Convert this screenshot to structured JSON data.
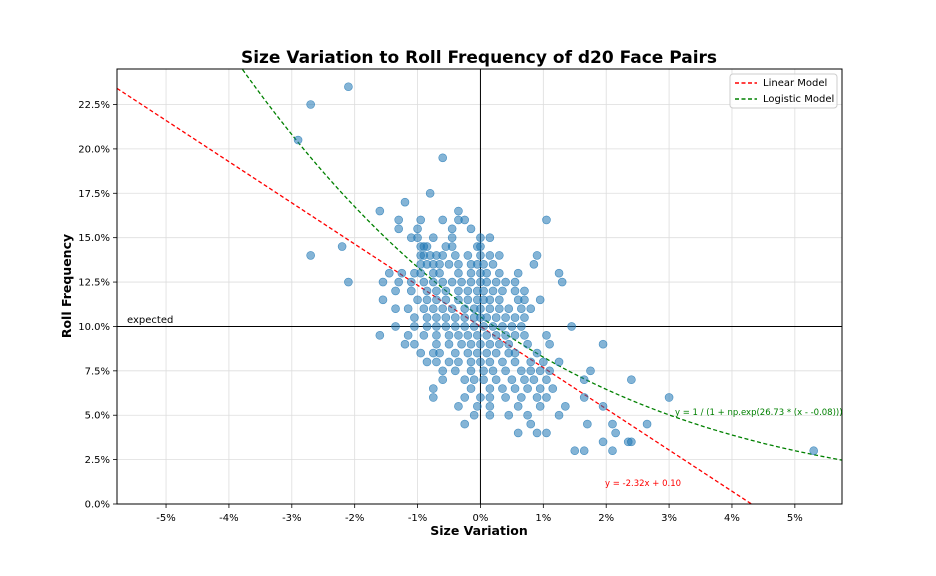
{
  "chart_data": {
    "type": "scatter",
    "title": "Size Variation to Roll Frequency of d20 Face Pairs",
    "xlabel": "Size Variation",
    "ylabel": "Roll Frequency",
    "xlim": [
      -0.0578,
      0.0575
    ],
    "ylim": [
      0,
      0.245
    ],
    "x_ticks": [
      -0.05,
      -0.04,
      -0.03,
      -0.02,
      -0.01,
      0,
      0.01,
      0.02,
      0.03,
      0.04,
      0.05
    ],
    "x_tick_labels": [
      "-5%",
      "-4%",
      "-3%",
      "-2%",
      "-1%",
      "0%",
      "1%",
      "2%",
      "3%",
      "4%",
      "5%"
    ],
    "y_ticks": [
      0,
      0.025,
      0.05,
      0.075,
      0.1,
      0.125,
      0.15,
      0.175,
      0.2,
      0.225
    ],
    "y_tick_labels": [
      "0.0%",
      "2.5%",
      "5.0%",
      "7.5%",
      "10.0%",
      "12.5%",
      "15.0%",
      "17.5%",
      "20.0%",
      "22.5%"
    ],
    "grid": true,
    "legend_position": "top-right",
    "reference_lines": {
      "horizontal_y": 0.1,
      "horizontal_label": "expected",
      "vertical_x": 0
    },
    "series": [
      {
        "name": "Linear Model",
        "type": "line",
        "style": "dashed",
        "color": "#ff0000",
        "slope": -2.32,
        "intercept": 0.1,
        "equation_label": "y = -2.32x + 0.10"
      },
      {
        "name": "Logistic Model",
        "type": "line",
        "style": "dashed",
        "color": "#008000",
        "k": 26.73,
        "x0": -0.08,
        "equation_label": "y = 1 / (1 + np.exp(26.73 * (x - -0.08)))"
      }
    ],
    "points_color": "#1f77b4",
    "points": [
      [
        -0.021,
        0.235
      ],
      [
        -0.027,
        0.225
      ],
      [
        -0.029,
        0.205
      ],
      [
        -0.006,
        0.195
      ],
      [
        -0.008,
        0.175
      ],
      [
        -0.016,
        0.165
      ],
      [
        -0.012,
        0.17
      ],
      [
        -0.022,
        0.145
      ],
      [
        -0.027,
        0.14
      ],
      [
        -0.021,
        0.125
      ],
      [
        0.0105,
        0.16
      ],
      [
        -0.0035,
        0.165
      ],
      [
        -0.0035,
        0.16
      ],
      [
        -0.0025,
        0.16
      ],
      [
        -0.0095,
        0.16
      ],
      [
        -0.006,
        0.16
      ],
      [
        -0.013,
        0.16
      ],
      [
        -0.013,
        0.155
      ],
      [
        -0.01,
        0.155
      ],
      [
        -0.0045,
        0.155
      ],
      [
        -0.0015,
        0.155
      ],
      [
        -0.011,
        0.15
      ],
      [
        -0.01,
        0.15
      ],
      [
        -0.0075,
        0.15
      ],
      [
        -0.0045,
        0.15
      ],
      [
        0.0,
        0.15
      ],
      [
        0.0015,
        0.15
      ],
      [
        -0.0095,
        0.145
      ],
      [
        -0.009,
        0.145
      ],
      [
        -0.0085,
        0.145
      ],
      [
        -0.0055,
        0.145
      ],
      [
        -0.0045,
        0.145
      ],
      [
        -0.0005,
        0.145
      ],
      [
        0.0,
        0.145
      ],
      [
        -0.0095,
        0.14
      ],
      [
        -0.009,
        0.14
      ],
      [
        -0.008,
        0.14
      ],
      [
        -0.007,
        0.14
      ],
      [
        -0.006,
        0.14
      ],
      [
        -0.004,
        0.14
      ],
      [
        -0.002,
        0.14
      ],
      [
        0.0,
        0.14
      ],
      [
        0.0015,
        0.14
      ],
      [
        0.003,
        0.14
      ],
      [
        0.009,
        0.14
      ],
      [
        -0.0095,
        0.135
      ],
      [
        -0.0085,
        0.135
      ],
      [
        -0.0075,
        0.135
      ],
      [
        -0.0065,
        0.135
      ],
      [
        -0.005,
        0.135
      ],
      [
        -0.0035,
        0.135
      ],
      [
        -0.0015,
        0.135
      ],
      [
        -0.0005,
        0.135
      ],
      [
        0.0005,
        0.135
      ],
      [
        0.002,
        0.135
      ],
      [
        0.0085,
        0.135
      ],
      [
        -0.0145,
        0.13
      ],
      [
        -0.0125,
        0.13
      ],
      [
        -0.0105,
        0.13
      ],
      [
        -0.0095,
        0.13
      ],
      [
        -0.0075,
        0.13
      ],
      [
        -0.0065,
        0.13
      ],
      [
        -0.0035,
        0.13
      ],
      [
        -0.0015,
        0.13
      ],
      [
        0.0,
        0.13
      ],
      [
        0.001,
        0.13
      ],
      [
        0.003,
        0.13
      ],
      [
        0.006,
        0.13
      ],
      [
        0.0125,
        0.13
      ],
      [
        -0.0155,
        0.125
      ],
      [
        -0.013,
        0.125
      ],
      [
        -0.011,
        0.125
      ],
      [
        -0.009,
        0.125
      ],
      [
        -0.0075,
        0.125
      ],
      [
        -0.006,
        0.125
      ],
      [
        -0.0045,
        0.125
      ],
      [
        -0.003,
        0.125
      ],
      [
        -0.0015,
        0.125
      ],
      [
        0.0,
        0.125
      ],
      [
        0.001,
        0.125
      ],
      [
        0.0025,
        0.125
      ],
      [
        0.004,
        0.125
      ],
      [
        0.0055,
        0.125
      ],
      [
        0.013,
        0.125
      ],
      [
        -0.0135,
        0.12
      ],
      [
        -0.011,
        0.12
      ],
      [
        -0.0085,
        0.12
      ],
      [
        -0.007,
        0.12
      ],
      [
        -0.0055,
        0.12
      ],
      [
        -0.0035,
        0.12
      ],
      [
        -0.002,
        0.12
      ],
      [
        -0.0005,
        0.12
      ],
      [
        0.0005,
        0.12
      ],
      [
        0.002,
        0.12
      ],
      [
        0.0035,
        0.12
      ],
      [
        0.0055,
        0.12
      ],
      [
        0.007,
        0.12
      ],
      [
        -0.0155,
        0.115
      ],
      [
        -0.01,
        0.115
      ],
      [
        -0.0085,
        0.115
      ],
      [
        -0.007,
        0.115
      ],
      [
        -0.0055,
        0.115
      ],
      [
        -0.0035,
        0.115
      ],
      [
        -0.002,
        0.115
      ],
      [
        -0.0005,
        0.115
      ],
      [
        0.0005,
        0.115
      ],
      [
        0.0015,
        0.115
      ],
      [
        0.003,
        0.115
      ],
      [
        0.006,
        0.115
      ],
      [
        0.007,
        0.115
      ],
      [
        0.0095,
        0.115
      ],
      [
        -0.0135,
        0.11
      ],
      [
        -0.0115,
        0.11
      ],
      [
        -0.009,
        0.11
      ],
      [
        -0.0075,
        0.11
      ],
      [
        -0.006,
        0.11
      ],
      [
        -0.0045,
        0.11
      ],
      [
        -0.0025,
        0.11
      ],
      [
        -0.001,
        0.11
      ],
      [
        0.0,
        0.11
      ],
      [
        0.0015,
        0.11
      ],
      [
        0.003,
        0.11
      ],
      [
        0.0045,
        0.11
      ],
      [
        0.0065,
        0.11
      ],
      [
        0.008,
        0.11
      ],
      [
        -0.0105,
        0.105
      ],
      [
        -0.0085,
        0.105
      ],
      [
        -0.007,
        0.105
      ],
      [
        -0.0055,
        0.105
      ],
      [
        -0.004,
        0.105
      ],
      [
        -0.0025,
        0.105
      ],
      [
        -0.001,
        0.105
      ],
      [
        0.0,
        0.105
      ],
      [
        0.001,
        0.105
      ],
      [
        0.0025,
        0.105
      ],
      [
        0.004,
        0.105
      ],
      [
        0.0055,
        0.105
      ],
      [
        0.007,
        0.105
      ],
      [
        -0.0135,
        0.1
      ],
      [
        -0.0105,
        0.1
      ],
      [
        -0.0085,
        0.1
      ],
      [
        -0.007,
        0.1
      ],
      [
        -0.0055,
        0.1
      ],
      [
        -0.004,
        0.1
      ],
      [
        -0.0025,
        0.1
      ],
      [
        -0.001,
        0.1
      ],
      [
        0.0005,
        0.1
      ],
      [
        0.002,
        0.1
      ],
      [
        0.0035,
        0.1
      ],
      [
        0.005,
        0.1
      ],
      [
        0.0065,
        0.1
      ],
      [
        0.0145,
        0.1
      ],
      [
        -0.0115,
        0.095
      ],
      [
        -0.009,
        0.095
      ],
      [
        -0.007,
        0.095
      ],
      [
        -0.005,
        0.095
      ],
      [
        -0.0035,
        0.095
      ],
      [
        -0.002,
        0.095
      ],
      [
        -0.0005,
        0.095
      ],
      [
        0.001,
        0.095
      ],
      [
        0.0025,
        0.095
      ],
      [
        0.004,
        0.095
      ],
      [
        0.0055,
        0.095
      ],
      [
        0.007,
        0.095
      ],
      [
        0.0105,
        0.095
      ],
      [
        -0.016,
        0.095
      ],
      [
        -0.012,
        0.09
      ],
      [
        -0.0105,
        0.09
      ],
      [
        -0.007,
        0.09
      ],
      [
        -0.005,
        0.09
      ],
      [
        -0.003,
        0.09
      ],
      [
        -0.0015,
        0.09
      ],
      [
        0.0,
        0.09
      ],
      [
        0.0015,
        0.09
      ],
      [
        0.003,
        0.09
      ],
      [
        0.0045,
        0.09
      ],
      [
        0.0075,
        0.09
      ],
      [
        0.011,
        0.09
      ],
      [
        0.0195,
        0.09
      ],
      [
        -0.0095,
        0.085
      ],
      [
        -0.0075,
        0.085
      ],
      [
        -0.0065,
        0.085
      ],
      [
        -0.004,
        0.085
      ],
      [
        -0.002,
        0.085
      ],
      [
        -0.0005,
        0.085
      ],
      [
        0.001,
        0.085
      ],
      [
        0.0025,
        0.085
      ],
      [
        0.0045,
        0.085
      ],
      [
        0.0055,
        0.085
      ],
      [
        0.009,
        0.085
      ],
      [
        -0.0085,
        0.08
      ],
      [
        -0.007,
        0.08
      ],
      [
        -0.005,
        0.08
      ],
      [
        -0.0035,
        0.08
      ],
      [
        -0.0015,
        0.08
      ],
      [
        0.0,
        0.08
      ],
      [
        0.0015,
        0.08
      ],
      [
        0.0035,
        0.08
      ],
      [
        0.0055,
        0.08
      ],
      [
        0.008,
        0.08
      ],
      [
        0.01,
        0.08
      ],
      [
        0.0125,
        0.08
      ],
      [
        -0.006,
        0.075
      ],
      [
        -0.004,
        0.075
      ],
      [
        -0.0015,
        0.075
      ],
      [
        0.0005,
        0.075
      ],
      [
        0.002,
        0.075
      ],
      [
        0.004,
        0.075
      ],
      [
        0.0065,
        0.075
      ],
      [
        0.008,
        0.075
      ],
      [
        0.0095,
        0.075
      ],
      [
        0.011,
        0.075
      ],
      [
        0.0175,
        0.075
      ],
      [
        -0.006,
        0.07
      ],
      [
        -0.0025,
        0.07
      ],
      [
        -0.001,
        0.07
      ],
      [
        0.0005,
        0.07
      ],
      [
        0.0025,
        0.07
      ],
      [
        0.005,
        0.07
      ],
      [
        0.007,
        0.07
      ],
      [
        0.0085,
        0.07
      ],
      [
        0.0105,
        0.07
      ],
      [
        0.0165,
        0.07
      ],
      [
        0.024,
        0.07
      ],
      [
        -0.0075,
        0.065
      ],
      [
        -0.0015,
        0.065
      ],
      [
        0.0015,
        0.065
      ],
      [
        0.0035,
        0.065
      ],
      [
        0.0055,
        0.065
      ],
      [
        0.0075,
        0.065
      ],
      [
        0.0095,
        0.065
      ],
      [
        0.0115,
        0.065
      ],
      [
        -0.0075,
        0.06
      ],
      [
        -0.0025,
        0.06
      ],
      [
        0.0,
        0.06
      ],
      [
        0.0015,
        0.06
      ],
      [
        0.004,
        0.06
      ],
      [
        0.0065,
        0.06
      ],
      [
        0.009,
        0.06
      ],
      [
        0.0105,
        0.06
      ],
      [
        0.0165,
        0.06
      ],
      [
        0.03,
        0.06
      ],
      [
        -0.0035,
        0.055
      ],
      [
        -0.0005,
        0.055
      ],
      [
        0.0015,
        0.055
      ],
      [
        0.006,
        0.055
      ],
      [
        0.0095,
        0.055
      ],
      [
        0.0135,
        0.055
      ],
      [
        0.0195,
        0.055
      ],
      [
        -0.001,
        0.05
      ],
      [
        0.0015,
        0.05
      ],
      [
        0.0045,
        0.05
      ],
      [
        0.0075,
        0.05
      ],
      [
        0.0125,
        0.05
      ],
      [
        -0.0025,
        0.045
      ],
      [
        0.008,
        0.045
      ],
      [
        0.017,
        0.045
      ],
      [
        0.021,
        0.045
      ],
      [
        0.0265,
        0.045
      ],
      [
        0.006,
        0.04
      ],
      [
        0.009,
        0.04
      ],
      [
        0.0105,
        0.04
      ],
      [
        0.0215,
        0.04
      ],
      [
        0.0195,
        0.035
      ],
      [
        0.0235,
        0.035
      ],
      [
        0.024,
        0.035
      ],
      [
        0.015,
        0.03
      ],
      [
        0.0165,
        0.03
      ],
      [
        0.021,
        0.03
      ],
      [
        0.053,
        0.03
      ]
    ]
  }
}
